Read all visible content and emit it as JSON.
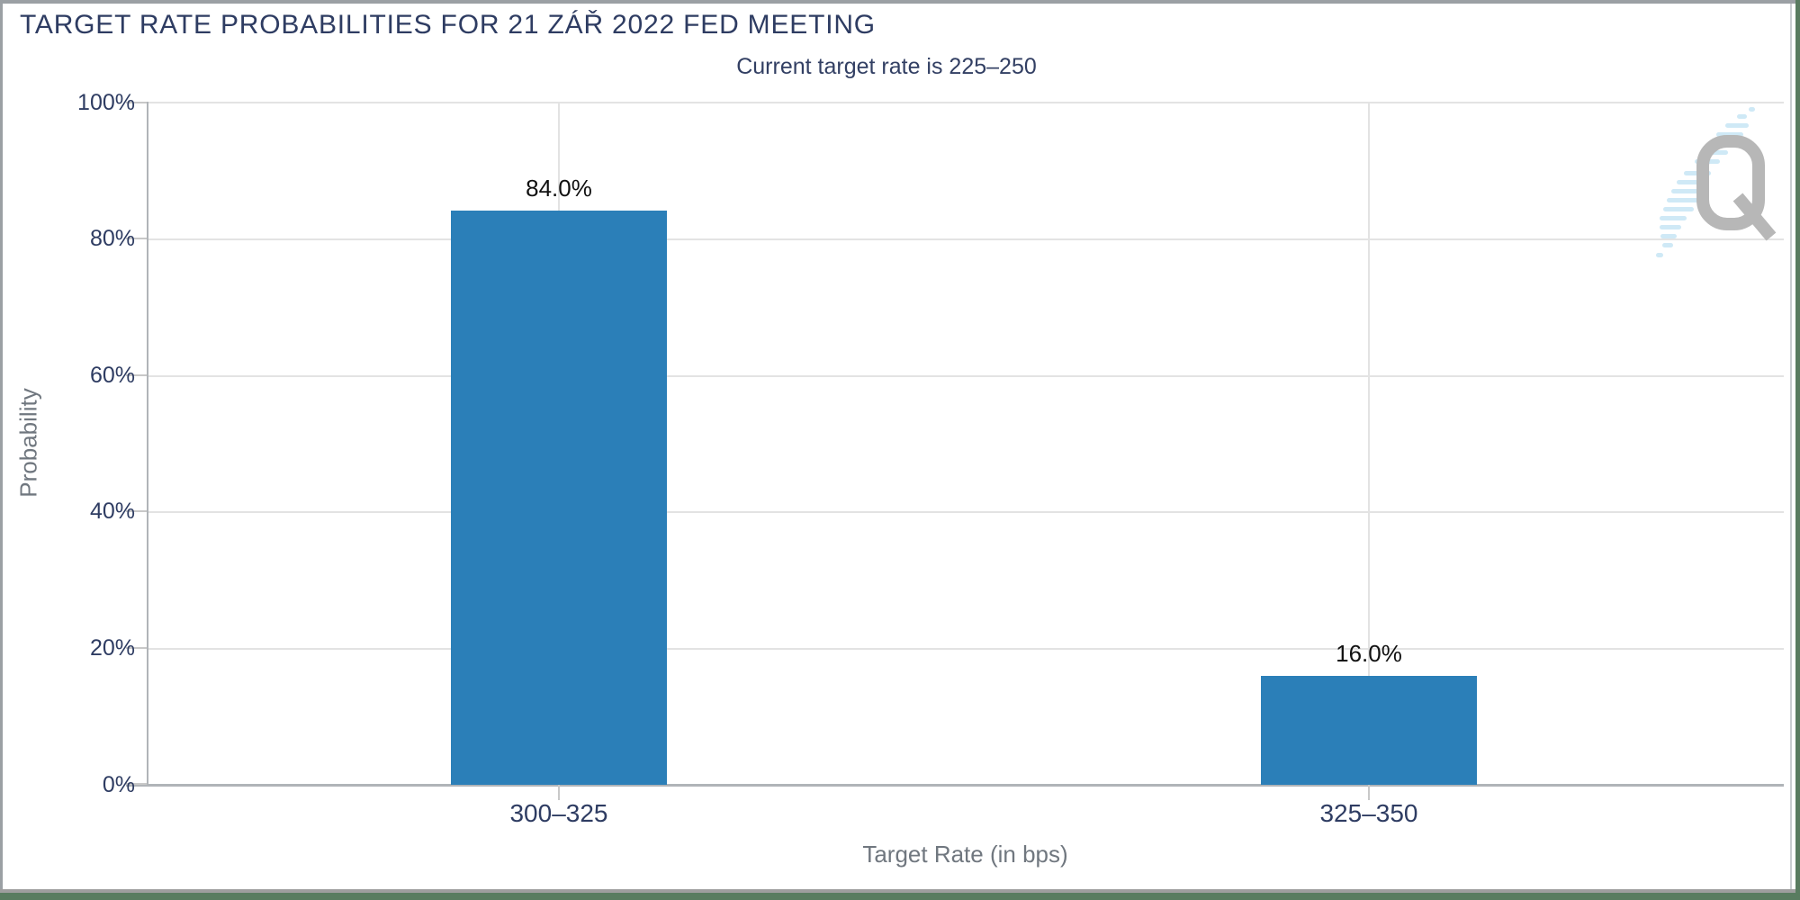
{
  "header": {
    "title": "TARGET RATE PROBABILITIES FOR 21 ZÁŘ 2022 FED MEETING",
    "subtitle": "Current target rate is 225–250"
  },
  "chart_data": {
    "type": "bar",
    "title": "TARGET RATE PROBABILITIES FOR 21 ZÁŘ 2022 FED MEETING",
    "subtitle": "Current target rate is 225–250",
    "categories": [
      "300–325",
      "325–350"
    ],
    "values": [
      84.0,
      16.0
    ],
    "value_labels": [
      "84.0%",
      "16.0%"
    ],
    "xlabel": "Target Rate (in bps)",
    "ylabel": "Probability",
    "ylim": [
      0,
      100
    ],
    "yticks": [
      "100%",
      "80%",
      "60%",
      "40%",
      "20%",
      "0%"
    ],
    "grid": true,
    "legend": "none"
  },
  "colors": {
    "bar": "#2b7fb8",
    "title_navy": "#2e3c62",
    "axis_title_gray": "#70777f",
    "gridline": "#e3e3e3",
    "frame_green": "#597c60",
    "frame_gray": "#9ba0a4",
    "logo_gray": "#b7b7b7",
    "logo_stripe_blue": "#cfe9f6"
  },
  "logo": {
    "name": "Q watermark"
  }
}
